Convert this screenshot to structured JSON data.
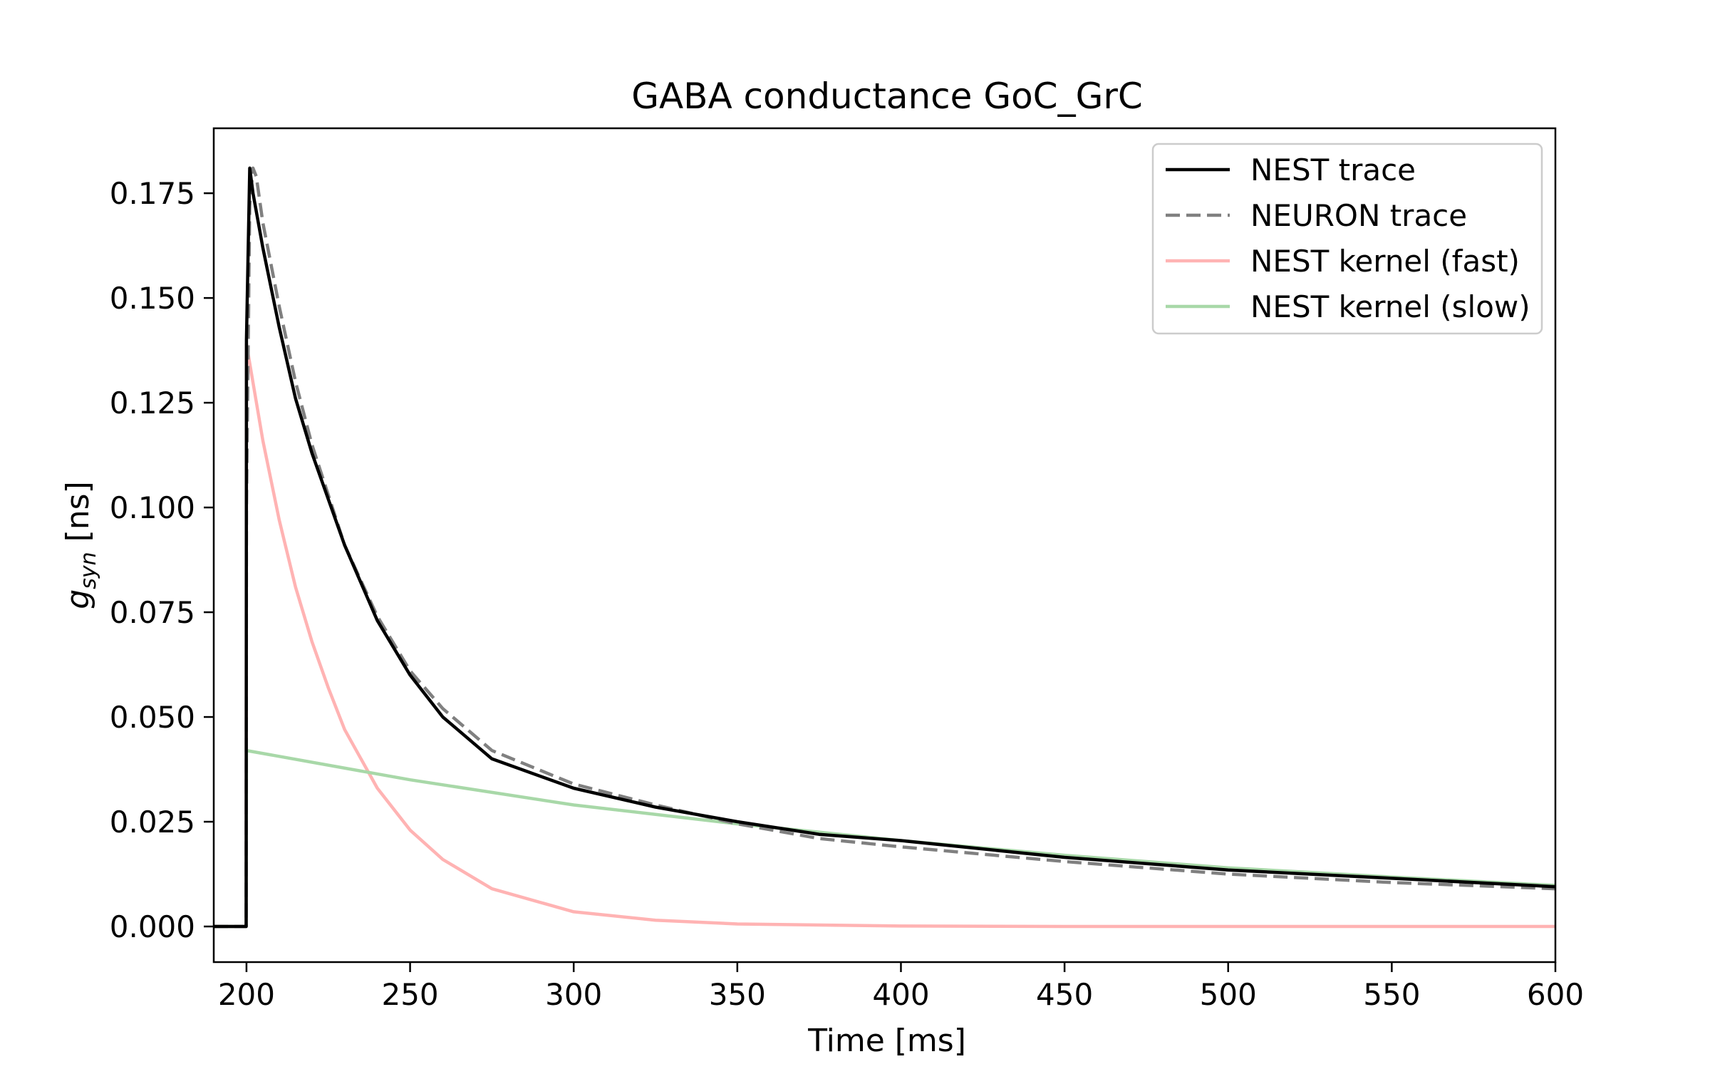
{
  "chart_data": {
    "type": "line",
    "title": "GABA conductance GoC_GrC",
    "xlabel": "Time [ms]",
    "ylabel": {
      "base": "g",
      "subscript": "syn",
      "unit": " [ns]"
    },
    "xlim": [
      190,
      600
    ],
    "ylim": [
      -0.0085,
      0.1905
    ],
    "xticks": [
      "200",
      "250",
      "300",
      "350",
      "400",
      "450",
      "500",
      "550",
      "600"
    ],
    "yticks": [
      "0.000",
      "0.025",
      "0.050",
      "0.075",
      "0.100",
      "0.125",
      "0.150",
      "0.175"
    ],
    "grid": false,
    "legend_position": "top-right",
    "series": [
      {
        "name": "NEST trace",
        "color": "#000000",
        "style": "solid",
        "x": [
          190,
          199.9,
          200,
          201,
          202,
          205,
          210,
          215,
          220,
          230,
          240,
          250,
          260,
          275,
          300,
          325,
          350,
          375,
          400,
          450,
          500,
          550,
          600
        ],
        "y": [
          0,
          0,
          0.14,
          0.181,
          0.175,
          0.162,
          0.143,
          0.126,
          0.113,
          0.091,
          0.073,
          0.06,
          0.05,
          0.04,
          0.033,
          0.0285,
          0.025,
          0.022,
          0.0205,
          0.0165,
          0.0135,
          0.0115,
          0.0095
        ]
      },
      {
        "name": "NEURON trace",
        "color": "#808080",
        "style": "dashed",
        "x": [
          190,
          199.9,
          200,
          201,
          202,
          203,
          205,
          210,
          215,
          220,
          230,
          240,
          250,
          260,
          275,
          300,
          325,
          350,
          375,
          400,
          450,
          500,
          550,
          600
        ],
        "y": [
          0,
          0,
          0.1,
          0.172,
          0.181,
          0.179,
          0.168,
          0.148,
          0.13,
          0.115,
          0.091,
          0.074,
          0.061,
          0.052,
          0.042,
          0.034,
          0.029,
          0.0245,
          0.021,
          0.019,
          0.0155,
          0.0125,
          0.0105,
          0.009
        ]
      },
      {
        "name": "NEST kernel (fast)",
        "color": "#ffb3b3",
        "style": "solid",
        "x": [
          190,
          199.9,
          200,
          205,
          210,
          215,
          220,
          225,
          230,
          240,
          250,
          260,
          275,
          300,
          325,
          350,
          400,
          450,
          500,
          600
        ],
        "y": [
          0,
          0,
          0.139,
          0.116,
          0.097,
          0.081,
          0.068,
          0.057,
          0.047,
          0.033,
          0.023,
          0.016,
          0.009,
          0.0035,
          0.0015,
          0.0006,
          0.0001,
          0,
          0,
          0
        ]
      },
      {
        "name": "NEST kernel (slow)",
        "color": "#a8d8a8",
        "style": "solid",
        "x": [
          190,
          199.9,
          200,
          250,
          300,
          350,
          400,
          450,
          500,
          550,
          600
        ],
        "y": [
          0,
          0,
          0.042,
          0.035,
          0.029,
          0.0245,
          0.0205,
          0.017,
          0.014,
          0.0118,
          0.0098
        ]
      }
    ]
  }
}
